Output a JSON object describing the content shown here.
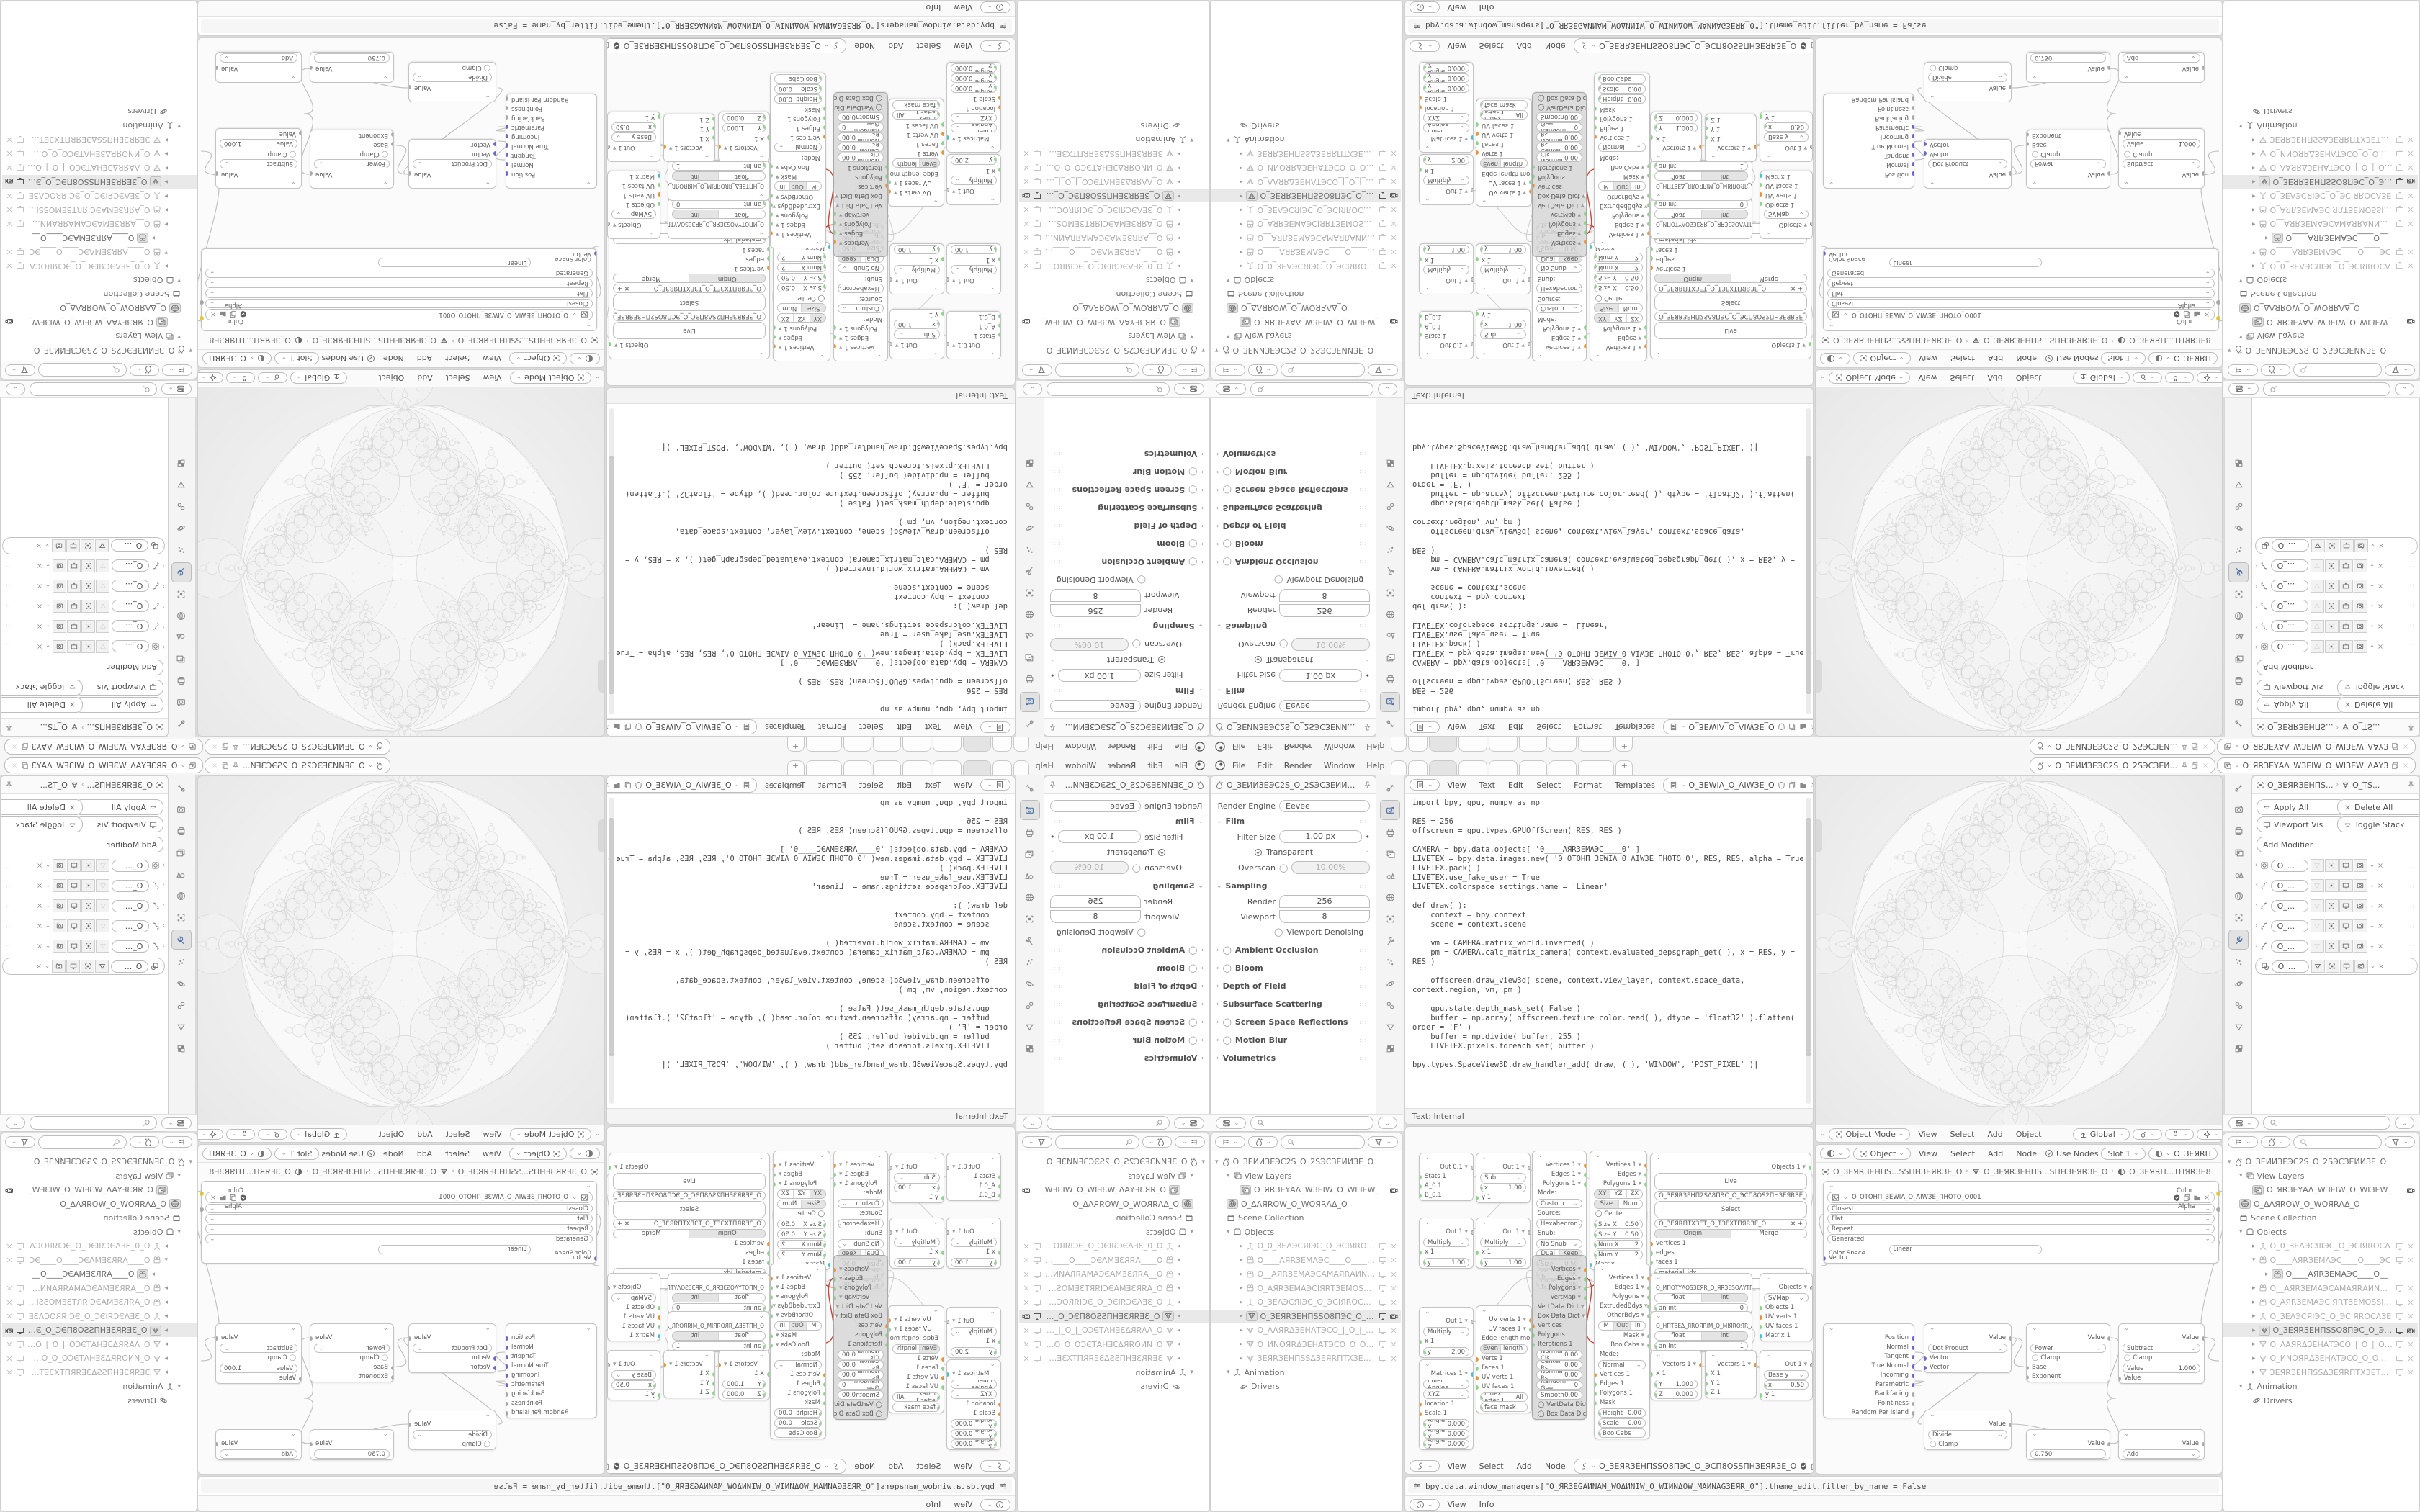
{
  "topbar": {
    "menus": [
      "File",
      "Edit",
      "Render",
      "Window",
      "Help"
    ],
    "tabs": [
      "",
      "",
      "",
      "",
      "",
      "",
      "",
      ""
    ],
    "active_tab": 2,
    "add_tab": "+",
    "scene_name": "O_ЗЕИИЗЕЭС2Ѕ_О_2ЅЭСЗЕИ...",
    "view_layer_name": "O_ЯRЗЕYАΛ_WЗЕIW_О_WIЗЕW_ΛАYЗЕRR_О"
  },
  "props_left": {
    "title": "O_ЗЕИИЗЕЭС2Ѕ_О_2ЅЭСЗЕИИЗЕ_О",
    "engine_label": "Render Engine",
    "engine_value": "Eevee",
    "film": {
      "label": "Film",
      "filter_label": "Filter Size",
      "filter_value": "1.00 px",
      "transparent": "Transparent",
      "overscan": "Overscan",
      "overscan_value": "10.00%"
    },
    "sampling": {
      "label": "Sampling",
      "render_label": "Render",
      "render_value": "256",
      "viewport_label": "Viewport",
      "viewport_value": "8",
      "denoise": "Viewport Denoising"
    },
    "collapsed": [
      {
        "label": "Ambient Occlusion",
        "chk": true
      },
      {
        "label": "Bloom",
        "chk": true
      },
      {
        "label": "Depth of Field",
        "chk": false
      },
      {
        "label": "Subsurface Scattering",
        "chk": false
      },
      {
        "label": "Screen Space Reflections",
        "chk": true
      },
      {
        "label": "Motion Blur",
        "chk": true
      },
      {
        "label": "Volumetrics",
        "chk": false
      }
    ]
  },
  "text_editor": {
    "menus": [
      "View",
      "Text",
      "Edit",
      "Select",
      "Format",
      "Templates"
    ],
    "datablock": "O_ЗЕWIΛ_О_ΛIWЗЕ_О",
    "footer": "Text: Internal",
    "code": [
      "import bpy, gpu, numpy as np",
      "",
      "RES = 256",
      "offscreen = gpu.types.GPUOffScreen( RES, RES )",
      "",
      "CAMERA = bpy.data.objects[ '0____AЯRЗЕМАЭС____0' ]",
      "LIVETEX = bpy.data.images.new( '0_ОТОНП_ЗЕWIΛ_0_ΛIWЗЕ_ПНОТО_0', RES, RES, alpha = True )",
      "LIVETEX.pack( )",
      "LIVETEX.use_fake_user = True",
      "LIVETEX.colorspace_settings.name = 'Linear'",
      "",
      "def draw( ):",
      "    context = bpy.context",
      "    scene = context.scene",
      "",
      "    vm = CAMERA.matrix_world.inverted( )",
      "    pm = CAMERA.calc_matrix_camera( context.evaluated_depsgraph_get( ), x = RES, y =",
      "RES )",
      "",
      "    offscreen.draw_view3d( scene, context.view_layer, context.space_data,",
      "context.region, vm, pm )",
      "",
      "    gpu.state.depth_mask_set( False )",
      "    buffer = np.array( offscreen.texture_color.read( ), dtype = 'float32' ).flatten(",
      "order = 'F' )",
      "    buffer = np.divide( buffer, 255 )",
      "    LIVETEX.pixels.foreach_set( buffer )",
      "",
      "bpy.types.SpaceView3D.draw_handler_add( draw, ( ), 'WINDOW', 'POST_PIXEL' )"
    ]
  },
  "viewport": {
    "mode": "Object Mode",
    "menus": [
      "View",
      "Select",
      "Add",
      "Object"
    ],
    "orientation": "Global"
  },
  "shader_editor": {
    "type_value": "Object",
    "menus": [
      "View",
      "Select",
      "Add",
      "Node"
    ],
    "use_nodes": "Use Nodes",
    "slot": "Slot 1",
    "material_short": "O_ЗЕЯRП",
    "breadcrumb": [
      "O_ЗЕЯRЗЕНПЅ...ЅЅПНЗЕЯRЗЕ_О",
      "O_ЗЕЯRЗЕНПЅ...ЅПНЗЕЯRЗЕ_О",
      "O_ЗЕЯRП...ТПЯRЗЕ8"
    ],
    "image_node": {
      "name": "O_ОТОНП_ЗЕWIΛ_О_ΛIWЗЕ_ПНОТО_О001",
      "options": [
        "Closest",
        "Flat",
        "Repeat",
        "Generated"
      ],
      "colorspace_label": "Color Space",
      "colorspace_value": "Linear",
      "vector_label": "Vector",
      "outputs": [
        "Color",
        "Alpha"
      ]
    },
    "geometry_outputs": [
      "Position",
      "Normal",
      "Tangent",
      "True Normal",
      "Incoming",
      "Parametric",
      "Backfacing",
      "Pointiness",
      "Random Per Island"
    ],
    "math_ops": {
      "dot": "Dot Product",
      "divide": "Divide",
      "power": "Power",
      "subtract": "Subtract",
      "add": "Add"
    },
    "labels": {
      "value": "Value",
      "clamp": "Clamp",
      "base": "Base",
      "exponent": "Exponent",
      "vector": "Vector",
      "value_field": "1.000",
      "const": "0.750"
    }
  },
  "sv_editor": {
    "menus": [
      "View",
      "Select",
      "Add",
      "Node"
    ],
    "tree_name": "O_ЗЕЯRЗЕНПЅЅО8ПЭС_О_ЭСП8ОЅЅПНЗЕЯRЗЕ_О",
    "live_node": {
      "objects_out": "Objects 1",
      "live": "Live",
      "collection_field": "O_ЗЕЯRЗЕНП2ЅΛ8ПЭС_О_ЭСП8ОЅ2ПНЗЕЯRЗЕ_О",
      "select": "Select",
      "texture_field": "O_ЗЕЯRПТХЗЕТ_О_ТЗЕХТПЯRЗЕ_О",
      "origin": "Origin",
      "merge": "Merge",
      "ins": [
        "vertices 1",
        "edges",
        "faces 1",
        "material_idx",
        "matrix"
      ]
    },
    "script1": "O_ИПОТYΛОЅЗЕЯR_О_ЯRЗЕЅОΛYТПОИ_О",
    "script2": "O_НПТЗЕΔ_ЯRОЯRIМ_О_МIЯRОЯR_ΔЗЕПТН_О"
  },
  "info_editor": {
    "log": "bpy.data.window_managers[\"O_ЯRЗЕGАИNАМ_WОΔИNIW_О_WIИNΔОW_МАИNAGЗЕЯR_0\"].theme_edit.filter_by_name = False",
    "menus": [
      "View",
      "Info"
    ]
  },
  "props_right": {
    "crumb_object": "O_ЗЕЯRЗЕНПЅ...",
    "crumb_data": "O_ТЅ...",
    "buttons": [
      "Apply All",
      "Delete All",
      "Viewport Vis",
      "Toggle Stack"
    ],
    "add_modifier": "Add Modifier",
    "modifier_name": "O_...",
    "modifier_count": 6
  },
  "outliner": {
    "scene": "O_ЗЕИИЗЕЭС2Ѕ_О_2ЅЭСЗЕИИЗЕ_О",
    "view_layers": "View Layers",
    "view_layer": "O_ЯRЗЕYАΛ_WЗЕIW_О_WIЗЕW_",
    "world": "O_ΔΛЯROW_О_WОЯRΛΔ_О",
    "scene_collection": "Scene Collection",
    "objects": "Objects",
    "animation": "Animation",
    "drivers": "Drivers",
    "camera_child": "O____AЯRЗЕМАЭС____О__",
    "items": [
      {
        "t": "empty",
        "n": "O_0_ЗЕΛЭСЯIЭС_О_ЭСIЯRОСΛ"
      },
      {
        "t": "camera",
        "n": "O____AЯRЗЕМАЭС____О____ЭС"
      },
      {
        "t": "camera",
        "n": "O__AЯRЗЕМАЭСAMAЯRАИNАП_"
      },
      {
        "t": "camera",
        "n": "O_AЯRЗЕМАЭСIЯRТЗЕМОЅЅI_О_"
      },
      {
        "t": "empty",
        "n": "O_ЗЕΛЭСЯIЭС_О_ЭСIЯRОСΛЗЕ"
      },
      {
        "t": "mesh",
        "n": "O_ЗЕЯRЗЕНПЅЅО8ПЭС_О_ЭСП",
        "sel": true
      },
      {
        "t": "mesh",
        "n": "O_ΛАЯRΔЗЕНАТЭСО_|_О_|_ООС"
      },
      {
        "t": "mesh",
        "n": "O_ИNОЯRΔЗЕНАТЭСО_О_ООСТ"
      },
      {
        "t": "mesh",
        "n": "ЗЕЯRЗЕНПЅЅΔЗЕЯRПТХЗЕТОТ:"
      }
    ]
  },
  "colors": {
    "socket_orange": "#ec9336",
    "socket_green": "#8bd68b",
    "socket_cyan": "#45c4d2",
    "socket_blue": "#6a67cf",
    "socket_yellow": "#ddc93f",
    "socket_gray": "#a8a8a8",
    "link_red": "#cc4433",
    "link_gray": "#bdbdbd",
    "accent_select": "#e8e8e8"
  }
}
